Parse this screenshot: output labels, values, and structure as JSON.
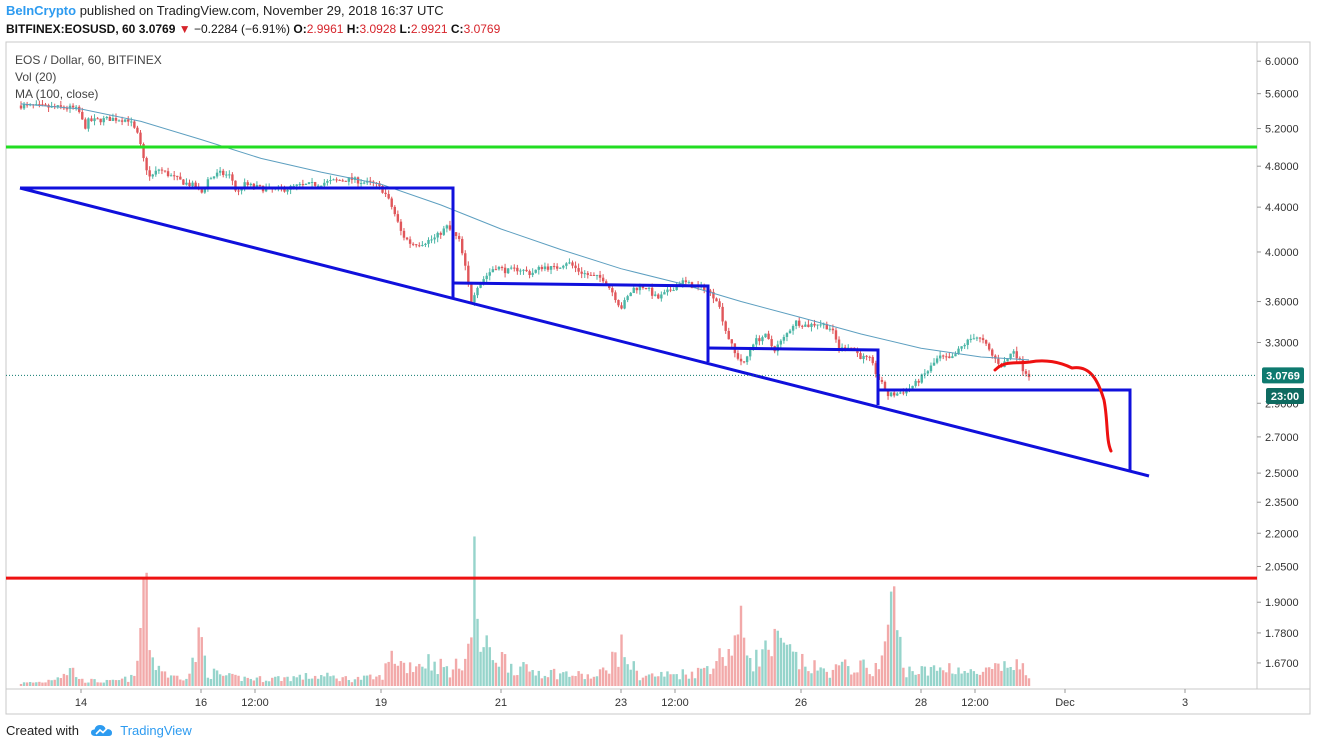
{
  "header": {
    "brand": "BeInCrypto",
    "published_text": "published on TradingView.com, November 29, 2018 16:37 UTC",
    "symbol": "BITFINEX:EOSUSD, 60",
    "last": "3.0769",
    "change": "−0.2284 (−6.91%)",
    "o_label": "O:",
    "o_value": "2.9961",
    "h_label": "H:",
    "h_value": "3.0928",
    "l_label": "L:",
    "l_value": "2.9921",
    "c_label": "C:",
    "c_value": "3.0769"
  },
  "legend": {
    "title": "EOS / Dollar, 60, BITFINEX",
    "vol": "Vol (20)",
    "ma": "MA (100, close)"
  },
  "footer": {
    "created_with": "Created with",
    "tradingview": "TradingView"
  },
  "colors": {
    "up": "#4bb6a6",
    "down": "#e0565a",
    "vol_up": "#96d4cb",
    "vol_down": "#f2a9a9",
    "ma": "#5d9fc0",
    "trend": "#1010dc",
    "support": "#22dd22",
    "resistance": "#ee1111",
    "projection": "#ee1111",
    "price_label": "#0e7a6f",
    "badge_dark": "#0e6a60"
  },
  "chart_data": {
    "type": "candlestick",
    "title": "EOS / Dollar, 60, BITFINEX",
    "y_scale": "log",
    "ylim": [
      1.58,
      6.25
    ],
    "y_ticks": [
      "6.0000",
      "5.6000",
      "5.2000",
      "4.8000",
      "4.4000",
      "4.0000",
      "3.6000",
      "3.3000",
      "2.9000",
      "2.7000",
      "2.5000",
      "2.3500",
      "2.2000",
      "2.0500",
      "1.9000",
      "1.7800",
      "1.6700"
    ],
    "x_ticks": [
      {
        "label": "14",
        "t": 1.0
      },
      {
        "label": "16",
        "t": 3.0
      },
      {
        "label": "12:00",
        "t": 3.9
      },
      {
        "label": "19",
        "t": 6.0
      },
      {
        "label": "21",
        "t": 8.0
      },
      {
        "label": "23",
        "t": 10.0
      },
      {
        "label": "12:00",
        "t": 10.9
      },
      {
        "label": "26",
        "t": 13.0
      },
      {
        "label": "28",
        "t": 15.0
      },
      {
        "label": "12:00",
        "t": 15.9
      },
      {
        "label": "Dec",
        "t": 17.4
      },
      {
        "label": "3",
        "t": 19.4
      }
    ],
    "xlim": [
      -0.25,
      20.6
    ],
    "price_path": [
      [
        0.0,
        5.46
      ],
      [
        0.5,
        5.44
      ],
      [
        0.9,
        5.43
      ],
      [
        1.0,
        5.36
      ],
      [
        1.05,
        5.18
      ],
      [
        1.1,
        5.28
      ],
      [
        1.5,
        5.31
      ],
      [
        1.8,
        5.3
      ],
      [
        1.95,
        5.12
      ],
      [
        2.05,
        4.85
      ],
      [
        2.15,
        4.68
      ],
      [
        2.3,
        4.77
      ],
      [
        2.5,
        4.7
      ],
      [
        2.7,
        4.64
      ],
      [
        2.9,
        4.6
      ],
      [
        3.0,
        4.52
      ],
      [
        3.1,
        4.66
      ],
      [
        3.3,
        4.73
      ],
      [
        3.5,
        4.7
      ],
      [
        3.6,
        4.52
      ],
      [
        3.7,
        4.62
      ],
      [
        4.0,
        4.58
      ],
      [
        4.3,
        4.56
      ],
      [
        4.6,
        4.6
      ],
      [
        4.9,
        4.62
      ],
      [
        5.2,
        4.65
      ],
      [
        5.5,
        4.67
      ],
      [
        5.7,
        4.64
      ],
      [
        5.9,
        4.62
      ],
      [
        6.05,
        4.55
      ],
      [
        6.2,
        4.38
      ],
      [
        6.35,
        4.15
      ],
      [
        6.5,
        4.07
      ],
      [
        6.7,
        4.08
      ],
      [
        6.9,
        4.12
      ],
      [
        7.1,
        4.22
      ],
      [
        7.3,
        4.1
      ],
      [
        7.4,
        3.88
      ],
      [
        7.5,
        3.6
      ],
      [
        7.6,
        3.72
      ],
      [
        7.75,
        3.8
      ],
      [
        7.9,
        3.88
      ],
      [
        8.1,
        3.84
      ],
      [
        8.3,
        3.86
      ],
      [
        8.5,
        3.82
      ],
      [
        8.7,
        3.88
      ],
      [
        8.9,
        3.86
      ],
      [
        9.1,
        3.92
      ],
      [
        9.3,
        3.84
      ],
      [
        9.5,
        3.8
      ],
      [
        9.7,
        3.78
      ],
      [
        9.85,
        3.68
      ],
      [
        10.0,
        3.55
      ],
      [
        10.2,
        3.7
      ],
      [
        10.4,
        3.72
      ],
      [
        10.6,
        3.62
      ],
      [
        10.8,
        3.68
      ],
      [
        11.0,
        3.76
      ],
      [
        11.2,
        3.72
      ],
      [
        11.4,
        3.7
      ],
      [
        11.6,
        3.62
      ],
      [
        11.75,
        3.38
      ],
      [
        11.9,
        3.22
      ],
      [
        12.05,
        3.15
      ],
      [
        12.2,
        3.3
      ],
      [
        12.4,
        3.35
      ],
      [
        12.55,
        3.25
      ],
      [
        12.7,
        3.32
      ],
      [
        12.9,
        3.45
      ],
      [
        13.1,
        3.42
      ],
      [
        13.3,
        3.44
      ],
      [
        13.5,
        3.4
      ],
      [
        13.65,
        3.25
      ],
      [
        13.8,
        3.28
      ],
      [
        14.0,
        3.2
      ],
      [
        14.15,
        3.18
      ],
      [
        14.3,
        3.05
      ],
      [
        14.45,
        2.95
      ],
      [
        14.6,
        2.96
      ],
      [
        14.75,
        2.98
      ],
      [
        14.9,
        3.02
      ],
      [
        15.1,
        3.1
      ],
      [
        15.3,
        3.2
      ],
      [
        15.5,
        3.18
      ],
      [
        15.7,
        3.28
      ],
      [
        15.9,
        3.35
      ],
      [
        16.05,
        3.3
      ],
      [
        16.2,
        3.2
      ],
      [
        16.35,
        3.14
      ],
      [
        16.55,
        3.25
      ],
      [
        16.7,
        3.12
      ],
      [
        16.8,
        3.0769
      ]
    ],
    "volume_path": [
      [
        0.0,
        0.02
      ],
      [
        0.4,
        0.03
      ],
      [
        0.85,
        0.12
      ],
      [
        1.0,
        0.04
      ],
      [
        1.5,
        0.03
      ],
      [
        1.9,
        0.06
      ],
      [
        2.0,
        0.4
      ],
      [
        2.05,
        0.9
      ],
      [
        2.1,
        0.5
      ],
      [
        2.2,
        0.18
      ],
      [
        2.5,
        0.06
      ],
      [
        2.8,
        0.08
      ],
      [
        3.0,
        0.35
      ],
      [
        3.1,
        0.1
      ],
      [
        3.5,
        0.06
      ],
      [
        4.0,
        0.05
      ],
      [
        4.5,
        0.06
      ],
      [
        5.0,
        0.07
      ],
      [
        5.5,
        0.05
      ],
      [
        6.0,
        0.06
      ],
      [
        6.2,
        0.22
      ],
      [
        6.4,
        0.14
      ],
      [
        6.8,
        0.18
      ],
      [
        7.2,
        0.1
      ],
      [
        7.5,
        0.3
      ],
      [
        7.55,
        0.85
      ],
      [
        7.65,
        0.28
      ],
      [
        8.0,
        0.2
      ],
      [
        8.3,
        0.12
      ],
      [
        8.7,
        0.1
      ],
      [
        9.2,
        0.08
      ],
      [
        9.6,
        0.06
      ],
      [
        10.0,
        0.26
      ],
      [
        10.3,
        0.07
      ],
      [
        10.8,
        0.08
      ],
      [
        11.3,
        0.1
      ],
      [
        11.8,
        0.25
      ],
      [
        12.0,
        0.4
      ],
      [
        12.2,
        0.18
      ],
      [
        12.6,
        0.3
      ],
      [
        13.0,
        0.16
      ],
      [
        13.4,
        0.1
      ],
      [
        13.8,
        0.14
      ],
      [
        14.3,
        0.12
      ],
      [
        14.55,
        0.62
      ],
      [
        14.7,
        0.12
      ],
      [
        15.1,
        0.1
      ],
      [
        15.5,
        0.14
      ],
      [
        15.9,
        0.08
      ],
      [
        16.3,
        0.12
      ],
      [
        16.6,
        0.16
      ],
      [
        16.8,
        0.06
      ]
    ],
    "ma_path": [
      [
        0.0,
        5.48
      ],
      [
        1.0,
        5.42
      ],
      [
        2.0,
        5.28
      ],
      [
        3.0,
        5.08
      ],
      [
        4.0,
        4.88
      ],
      [
        5.0,
        4.74
      ],
      [
        6.0,
        4.62
      ],
      [
        7.0,
        4.42
      ],
      [
        8.0,
        4.2
      ],
      [
        9.0,
        4.02
      ],
      [
        10.0,
        3.86
      ],
      [
        11.0,
        3.74
      ],
      [
        12.0,
        3.6
      ],
      [
        13.0,
        3.48
      ],
      [
        14.0,
        3.36
      ],
      [
        15.0,
        3.26
      ],
      [
        16.0,
        3.2
      ],
      [
        16.8,
        3.18
      ]
    ],
    "current_price": "3.0769",
    "countdown": "23:00",
    "horizontal_lines": [
      {
        "name": "support-line",
        "value": 5.0
      },
      {
        "name": "resistance-line",
        "value": 2.0
      }
    ]
  }
}
